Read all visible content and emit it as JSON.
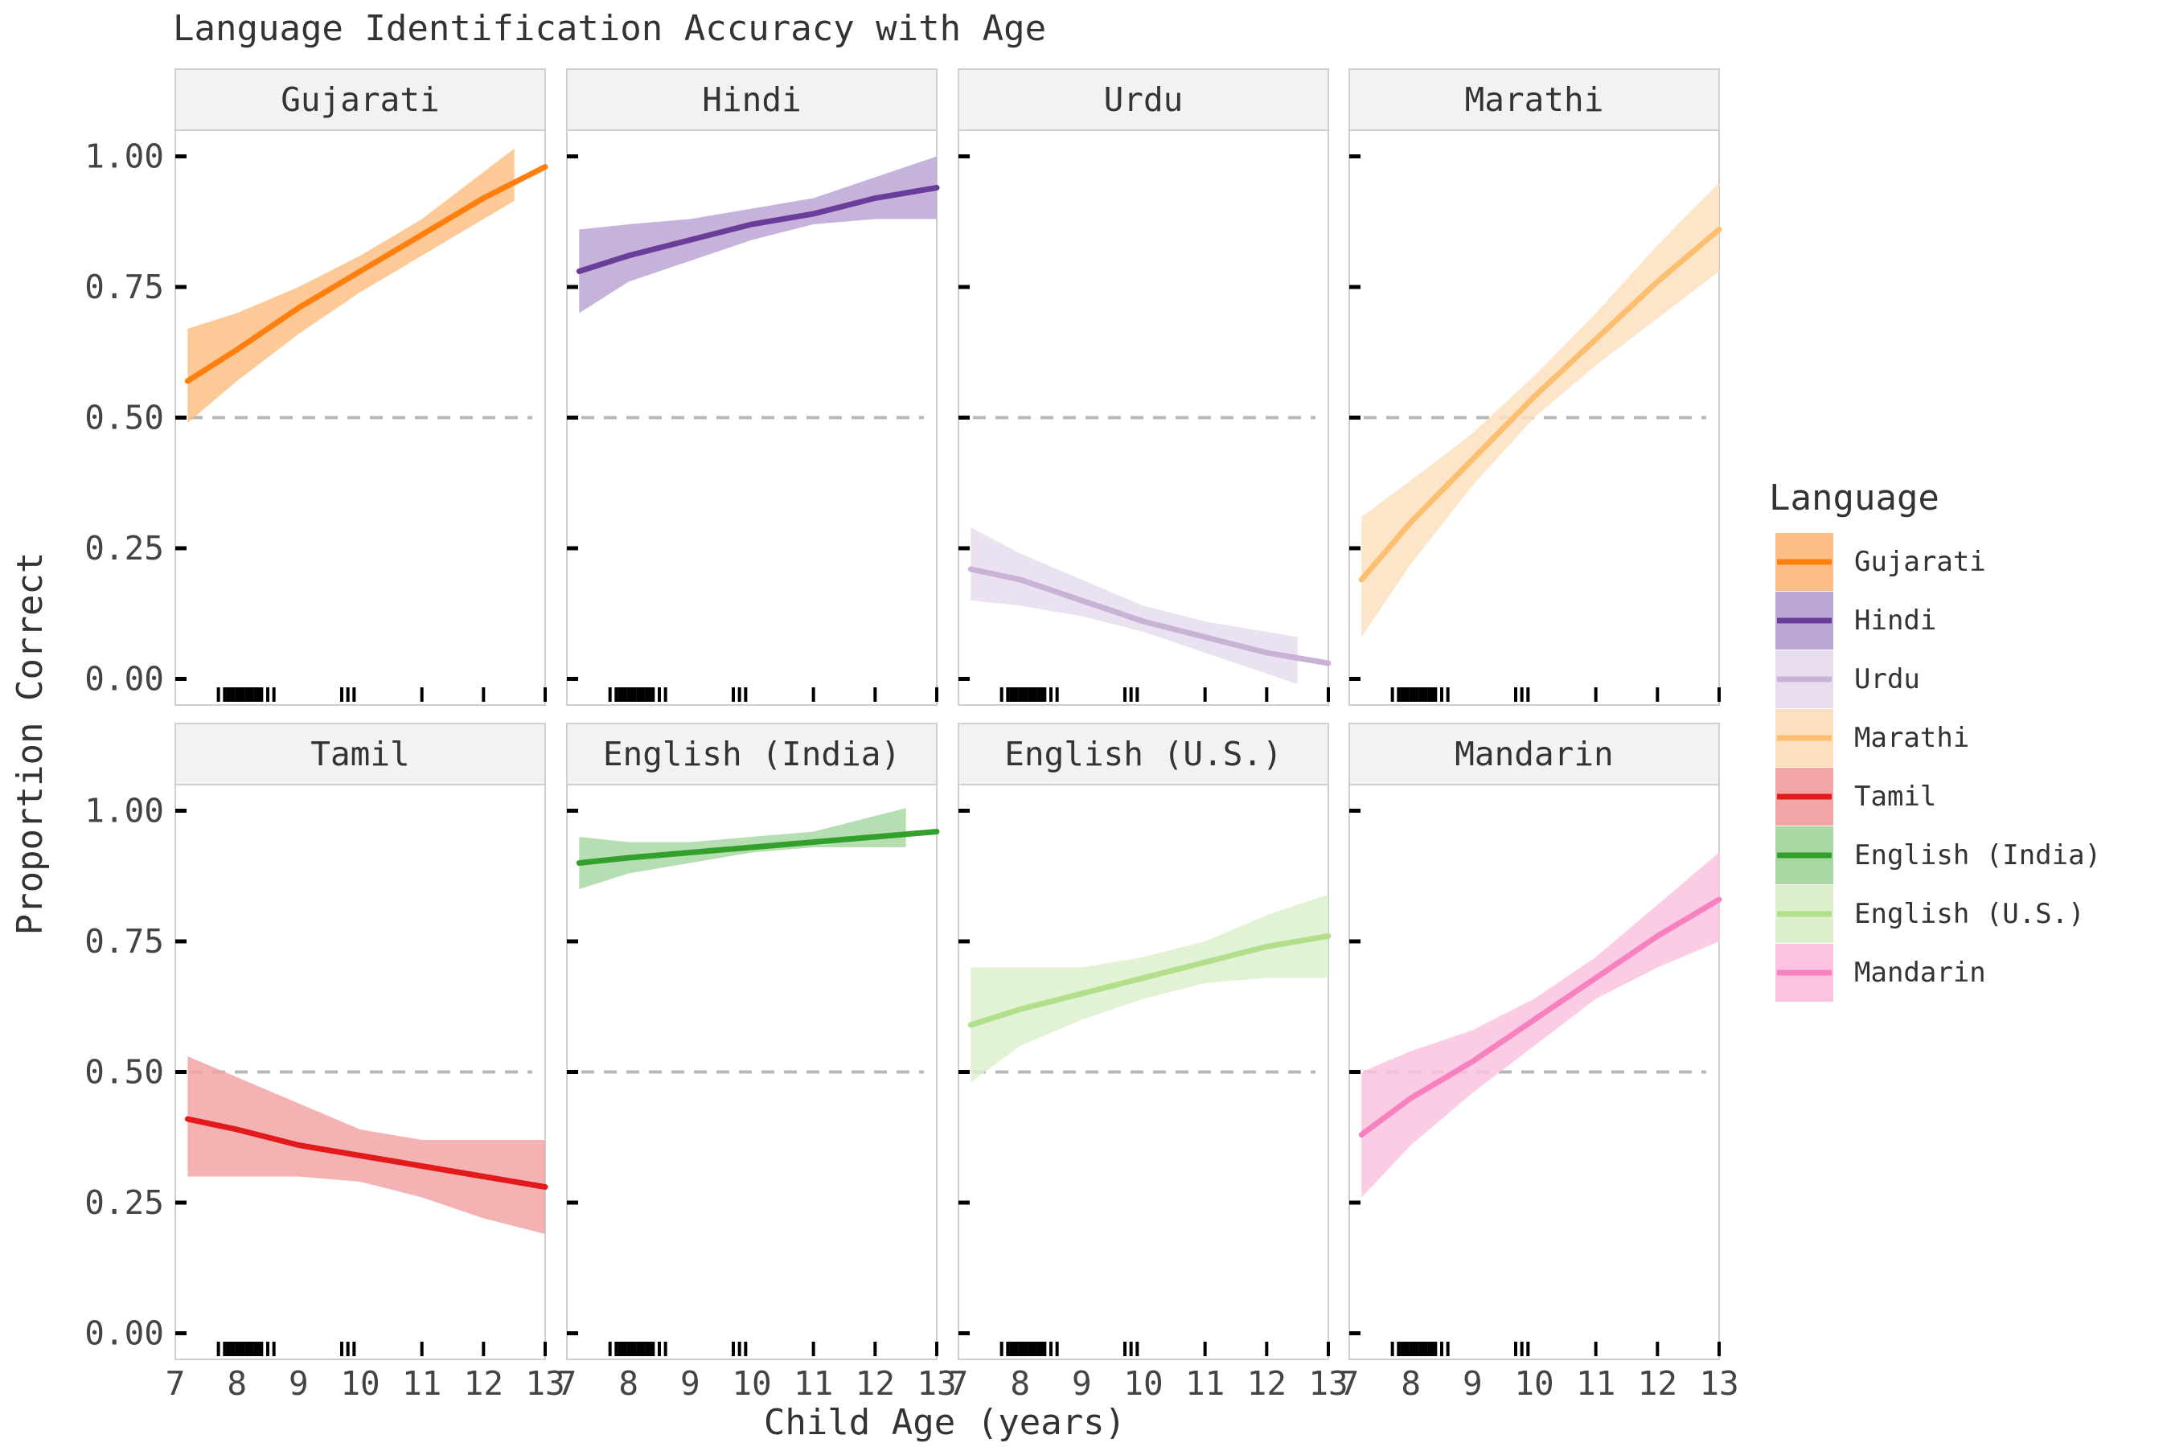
{
  "chart_data": {
    "type": "line",
    "title": "Language Identification Accuracy with Age",
    "xlabel": "Child Age (years)",
    "ylabel": "Proportion Correct",
    "xlim": [
      7,
      13
    ],
    "ylim": [
      -0.05,
      1.05
    ],
    "x_ticks": [
      "7",
      "8",
      "9",
      "10",
      "11",
      "12",
      "13"
    ],
    "y_ticks": [
      "0.00",
      "0.25",
      "0.50",
      "0.75",
      "1.00"
    ],
    "reference_line": 0.5,
    "legend": {
      "title": "Language",
      "position": "right"
    },
    "rug_ages": [
      7.7,
      7.8,
      7.85,
      7.9,
      7.95,
      8.0,
      8.05,
      8.1,
      8.15,
      8.2,
      8.25,
      8.3,
      8.35,
      8.4,
      8.5,
      8.6,
      9.7,
      9.8,
      9.9,
      11.0,
      12.0,
      13.0
    ],
    "series": [
      {
        "name": "Gujarati",
        "color": "#ff7f0e",
        "ribbon": "#fdbf85",
        "x": [
          7.2,
          8,
          9,
          10,
          11,
          12,
          13
        ],
        "y": [
          0.57,
          0.63,
          0.71,
          0.78,
          0.85,
          0.92,
          0.98
        ],
        "lower": [
          0.49,
          0.57,
          0.66,
          0.74,
          0.81,
          0.88,
          null
        ],
        "upper": [
          0.67,
          0.7,
          0.75,
          0.81,
          0.88,
          0.97,
          null
        ],
        "ribbon_end": 12.5
      },
      {
        "name": "Hindi",
        "color": "#6a3d9a",
        "ribbon": "#bba6d6",
        "x": [
          7.2,
          8,
          9,
          10,
          11,
          12,
          13
        ],
        "y": [
          0.78,
          0.81,
          0.84,
          0.87,
          0.89,
          0.92,
          0.94
        ],
        "lower": [
          0.7,
          0.76,
          0.8,
          0.84,
          0.87,
          0.88,
          0.88
        ],
        "upper": [
          0.86,
          0.87,
          0.88,
          0.9,
          0.92,
          0.96,
          1.0
        ],
        "ribbon_end": 13
      },
      {
        "name": "Urdu",
        "color": "#cab2d6",
        "ribbon": "#e7ddef",
        "x": [
          7.2,
          8,
          9,
          10,
          11,
          12,
          13
        ],
        "y": [
          0.21,
          0.19,
          0.15,
          0.11,
          0.08,
          0.05,
          0.03
        ],
        "lower": [
          0.15,
          0.14,
          0.12,
          0.09,
          0.05,
          0.01,
          null
        ],
        "upper": [
          0.29,
          0.24,
          0.19,
          0.14,
          0.11,
          0.09,
          null
        ],
        "ribbon_end": 12.5
      },
      {
        "name": "Marathi",
        "color": "#fdbf6f",
        "ribbon": "#fde0bf",
        "x": [
          7.2,
          8,
          9,
          10,
          11,
          12,
          13
        ],
        "y": [
          0.19,
          0.3,
          0.42,
          0.54,
          0.65,
          0.76,
          0.86
        ],
        "lower": [
          0.08,
          0.22,
          0.37,
          0.5,
          0.6,
          0.69,
          0.78
        ],
        "upper": [
          0.31,
          0.38,
          0.47,
          0.58,
          0.7,
          0.83,
          0.95
        ],
        "ribbon_end": 13
      },
      {
        "name": "Tamil",
        "color": "#e31a1c",
        "ribbon": "#f3a5a6",
        "x": [
          7.2,
          8,
          9,
          10,
          11,
          12,
          13
        ],
        "y": [
          0.41,
          0.39,
          0.36,
          0.34,
          0.32,
          0.3,
          0.28
        ],
        "lower": [
          0.3,
          0.3,
          0.3,
          0.29,
          0.26,
          0.22,
          0.19
        ],
        "upper": [
          0.53,
          0.49,
          0.44,
          0.39,
          0.37,
          0.37,
          0.37
        ],
        "ribbon_end": 13
      },
      {
        "name": "English (India)",
        "color": "#33a02c",
        "ribbon": "#a8d8a4",
        "x": [
          7.2,
          8,
          9,
          10,
          11,
          12,
          13
        ],
        "y": [
          0.9,
          0.91,
          0.92,
          0.93,
          0.94,
          0.95,
          0.96
        ],
        "lower": [
          0.85,
          0.88,
          0.9,
          0.92,
          0.93,
          0.93,
          null
        ],
        "upper": [
          0.95,
          0.94,
          0.94,
          0.95,
          0.96,
          0.99,
          null
        ],
        "ribbon_end": 12.5
      },
      {
        "name": "English (U.S.)",
        "color": "#b2df8a",
        "ribbon": "#ddf0cc",
        "x": [
          7.2,
          8,
          9,
          10,
          11,
          12,
          13
        ],
        "y": [
          0.59,
          0.62,
          0.65,
          0.68,
          0.71,
          0.74,
          0.76
        ],
        "lower": [
          0.48,
          0.55,
          0.6,
          0.64,
          0.67,
          0.68,
          0.68
        ],
        "upper": [
          0.7,
          0.7,
          0.7,
          0.72,
          0.75,
          0.8,
          0.84
        ],
        "ribbon_end": 13
      },
      {
        "name": "Mandarin",
        "color": "#f781bf",
        "ribbon": "#fbc3df",
        "x": [
          7.2,
          8,
          9,
          10,
          11,
          12,
          13
        ],
        "y": [
          0.38,
          0.45,
          0.52,
          0.6,
          0.68,
          0.76,
          0.83
        ],
        "lower": [
          0.26,
          0.36,
          0.46,
          0.55,
          0.64,
          0.7,
          0.75
        ],
        "upper": [
          0.5,
          0.54,
          0.58,
          0.64,
          0.72,
          0.82,
          0.92
        ],
        "ribbon_end": 13
      }
    ]
  }
}
